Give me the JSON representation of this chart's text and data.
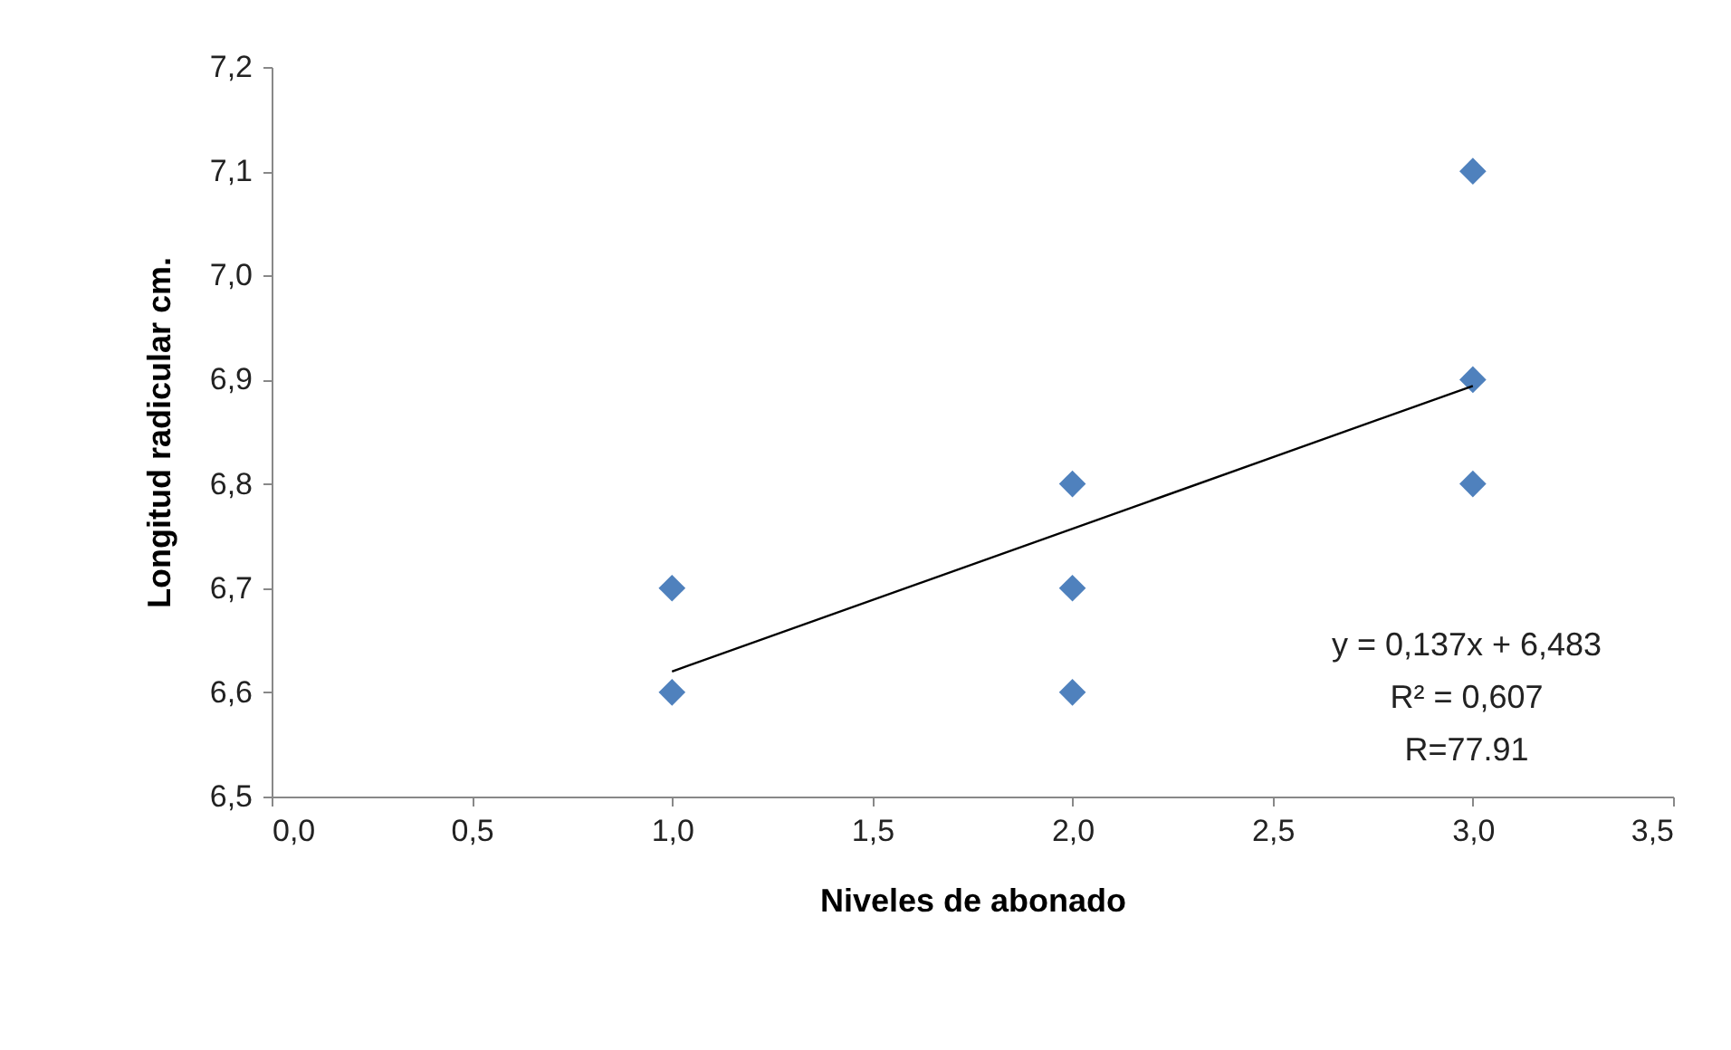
{
  "chart_data": {
    "type": "scatter",
    "xlabel": "Niveles de abonado",
    "ylabel": "Longitud radicular cm.",
    "series": [
      {
        "color": "#4f81bd",
        "x": [
          1,
          1,
          2,
          2,
          2,
          3,
          3,
          3
        ],
        "values": [
          6.7,
          6.6,
          6.8,
          6.7,
          6.6,
          7.1,
          6.9,
          6.8
        ],
        "marker": "diamond"
      },
      {
        "type": "line",
        "color": "#000000",
        "x": [
          1,
          3
        ],
        "values": [
          6.62,
          6.894
        ],
        "marker": "none"
      }
    ],
    "xlim": [
      0,
      3.5
    ],
    "xticks": [
      {
        "value": 0,
        "label": "0,0"
      },
      {
        "value": 0.5,
        "label": "0,5"
      },
      {
        "value": 1,
        "label": "1,0"
      },
      {
        "value": 1.5,
        "label": "1,5"
      },
      {
        "value": 2,
        "label": "2,0"
      },
      {
        "value": 2.5,
        "label": "2,5"
      },
      {
        "value": 3,
        "label": "3,0"
      },
      {
        "value": 3.5,
        "label": "3,5"
      }
    ],
    "ylim": [
      6.5,
      7.2
    ],
    "yticks": [
      {
        "value": 6.5,
        "label": "6,5"
      },
      {
        "value": 6.6,
        "label": "6,6"
      },
      {
        "value": 6.7,
        "label": "6,7"
      },
      {
        "value": 6.8,
        "label": "6,8"
      },
      {
        "value": 6.9,
        "label": "6,9"
      },
      {
        "value": 7.0,
        "label": "7,0"
      },
      {
        "value": 7.1,
        "label": "7,1"
      },
      {
        "value": 7.2,
        "label": "7,2"
      }
    ],
    "annotations": [
      "y = 0,137x + 6,483",
      "R² = 0,607",
      "R=77.91"
    ],
    "grid": false
  }
}
